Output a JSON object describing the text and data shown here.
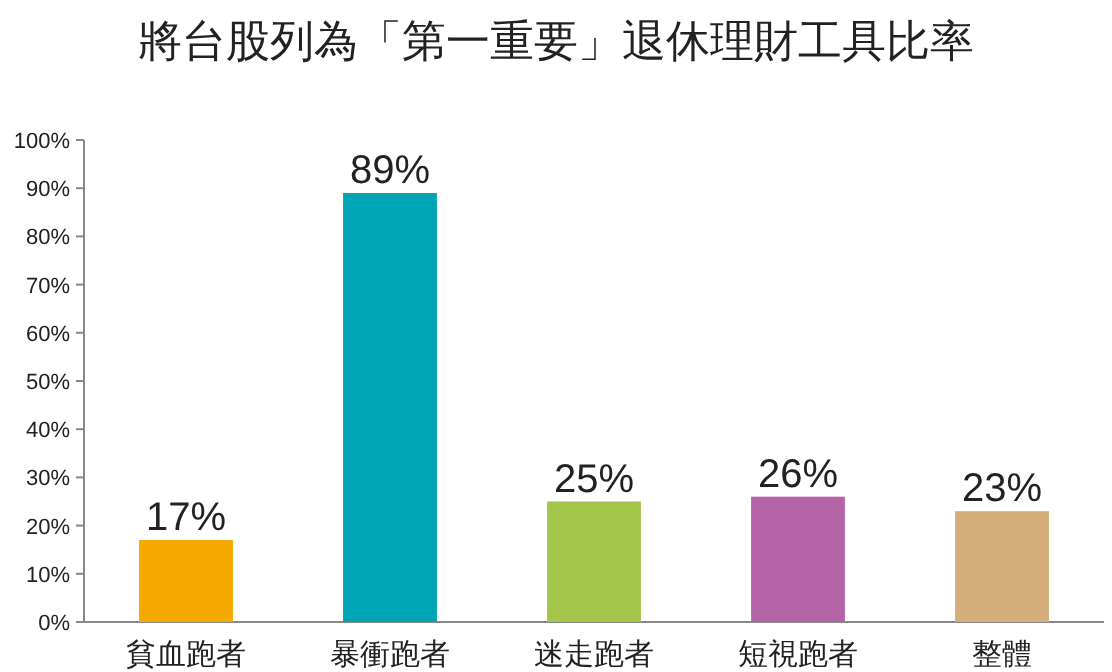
{
  "chart_data": {
    "type": "bar",
    "title": "將台股列為「第一重要」退休理財工具比率",
    "categories": [
      "貧血跑者",
      "暴衝跑者",
      "迷走跑者",
      "短視跑者",
      "整體"
    ],
    "values": [
      17,
      89,
      25,
      26,
      23
    ],
    "colors": [
      "#f5a800",
      "#00a5b5",
      "#a2c54a",
      "#b565a7",
      "#d4ae7a"
    ],
    "value_labels": [
      "17%",
      "89%",
      "25%",
      "26%",
      "23%"
    ],
    "ylim": [
      0,
      100
    ],
    "yticks": [
      {
        "value": 0,
        "label": "0%"
      },
      {
        "value": 10,
        "label": "10%"
      },
      {
        "value": 20,
        "label": "20%"
      },
      {
        "value": 30,
        "label": "30%"
      },
      {
        "value": 40,
        "label": "40%"
      },
      {
        "value": 50,
        "label": "50%"
      },
      {
        "value": 60,
        "label": "60%"
      },
      {
        "value": 70,
        "label": "70%"
      },
      {
        "value": 80,
        "label": "80%"
      },
      {
        "value": 90,
        "label": "90%"
      },
      {
        "value": 100,
        "label": "100%"
      }
    ]
  }
}
